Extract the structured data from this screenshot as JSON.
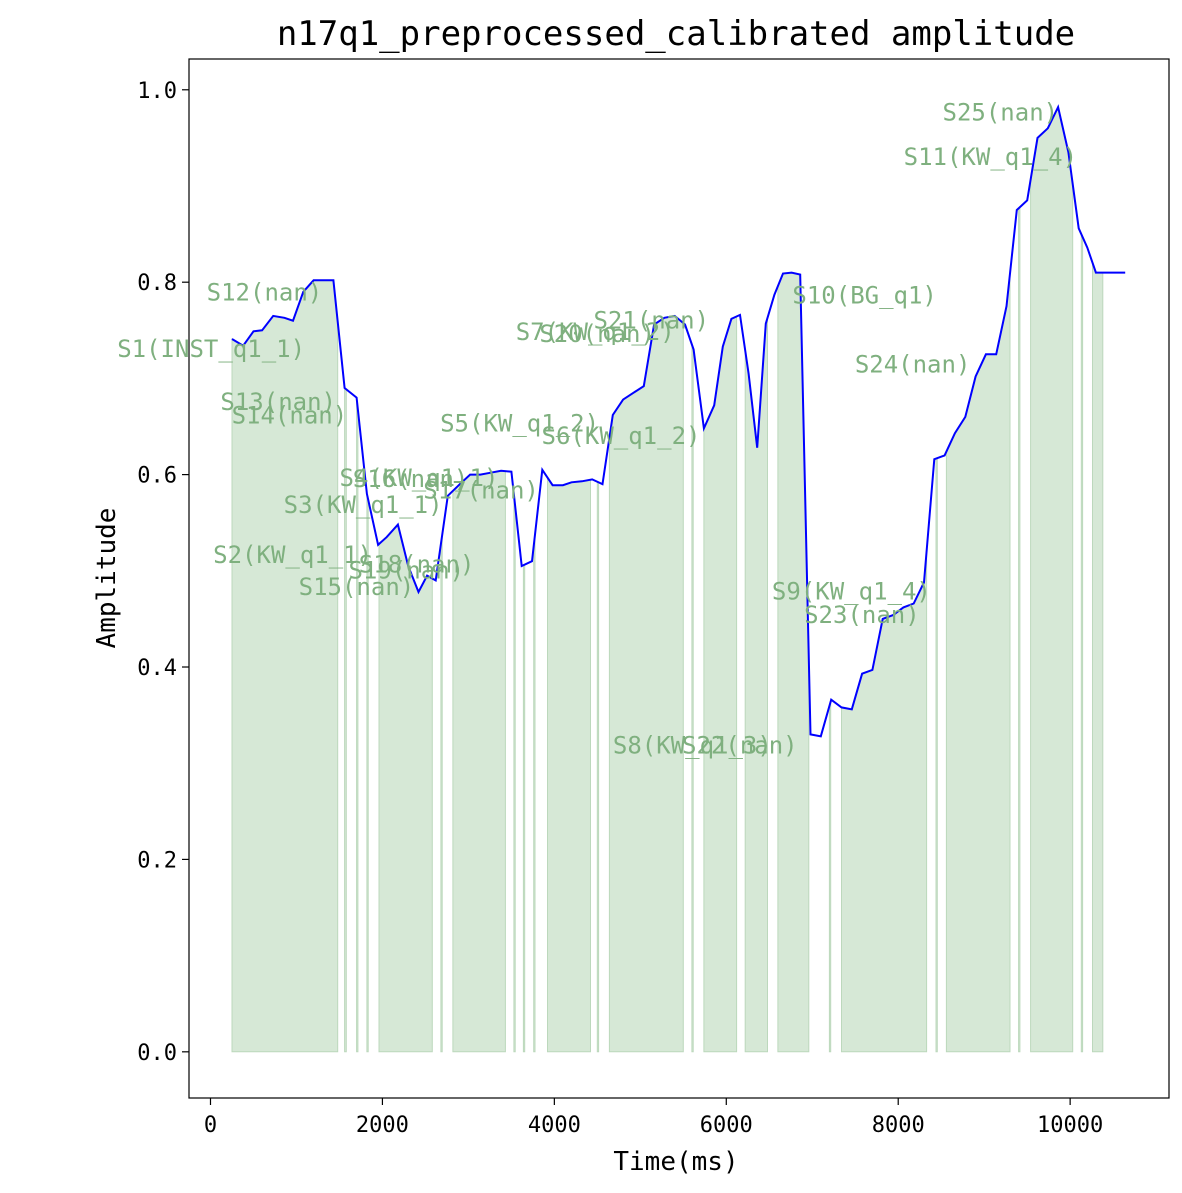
{
  "chart_data": {
    "type": "line",
    "title": "n17q1_preprocessed_calibrated amplitude",
    "xlabel": "Time(ms)",
    "ylabel": "Amplitude",
    "xlim": [
      -250,
      11150
    ],
    "ylim": [
      -0.048,
      1.032
    ],
    "x_ticks": [
      0,
      2000,
      4000,
      6000,
      8000,
      10000
    ],
    "x_tick_labels": [
      "0",
      "2000",
      "4000",
      "6000",
      "8000",
      "10000"
    ],
    "y_ticks": [
      0.0,
      0.2,
      0.4,
      0.6,
      0.8,
      1.0
    ],
    "y_tick_labels": [
      "0.0",
      "0.2",
      "0.4",
      "0.6",
      "0.8",
      "1.0"
    ],
    "grid": false,
    "series": [
      {
        "color": "#0000ff",
        "x": [
          250,
          380,
          500,
          600,
          730,
          860,
          960,
          1080,
          1200,
          1320,
          1430,
          1560,
          1700,
          1820,
          1950,
          2050,
          2180,
          2300,
          2420,
          2520,
          2620,
          2760,
          2900,
          3020,
          3140,
          3260,
          3380,
          3500,
          3620,
          3740,
          3860,
          3980,
          4100,
          4200,
          4320,
          4440,
          4560,
          4680,
          4800,
          4920,
          5040,
          5160,
          5280,
          5400,
          5520,
          5620,
          5740,
          5860,
          5960,
          6060,
          6160,
          6260,
          6360,
          6460,
          6560,
          6660,
          6760,
          6860,
          6980,
          7100,
          7220,
          7340,
          7460,
          7580,
          7700,
          7820,
          7940,
          8060,
          8180,
          8300,
          8420,
          8540,
          8660,
          8780,
          8900,
          9020,
          9140,
          9260,
          9380,
          9500,
          9620,
          9740,
          9860,
          9980,
          10100,
          10200,
          10300,
          10420,
          10540,
          10640
        ],
        "y": [
          0.741,
          0.734,
          0.749,
          0.75,
          0.765,
          0.763,
          0.76,
          0.79,
          0.802,
          0.802,
          0.802,
          0.69,
          0.68,
          0.58,
          0.527,
          0.535,
          0.548,
          0.505,
          0.478,
          0.495,
          0.49,
          0.578,
          0.59,
          0.6,
          0.6,
          0.602,
          0.604,
          0.603,
          0.505,
          0.51,
          0.605,
          0.589,
          0.589,
          0.592,
          0.593,
          0.595,
          0.59,
          0.662,
          0.678,
          0.685,
          0.692,
          0.756,
          0.763,
          0.765,
          0.756,
          0.73,
          0.648,
          0.672,
          0.733,
          0.762,
          0.766,
          0.705,
          0.628,
          0.757,
          0.787,
          0.809,
          0.81,
          0.808,
          0.33,
          0.328,
          0.366,
          0.358,
          0.356,
          0.393,
          0.397,
          0.45,
          0.454,
          0.462,
          0.466,
          0.488,
          0.616,
          0.62,
          0.643,
          0.66,
          0.702,
          0.725,
          0.725,
          0.775,
          0.875,
          0.885,
          0.95,
          0.96,
          0.982,
          0.935,
          0.856,
          0.836,
          0.81,
          0.81,
          0.81,
          0.81
        ]
      }
    ],
    "segments": [
      {
        "start": 250,
        "end": 1480
      },
      {
        "start": 1560,
        "end": 1580
      },
      {
        "start": 1700,
        "end": 1715
      },
      {
        "start": 1820,
        "end": 1835
      },
      {
        "start": 1960,
        "end": 2580
      },
      {
        "start": 2680,
        "end": 2695
      },
      {
        "start": 2820,
        "end": 3430
      },
      {
        "start": 3530,
        "end": 3545
      },
      {
        "start": 3640,
        "end": 3655
      },
      {
        "start": 3760,
        "end": 3775
      },
      {
        "start": 3920,
        "end": 4420
      },
      {
        "start": 4500,
        "end": 4515
      },
      {
        "start": 4640,
        "end": 5500
      },
      {
        "start": 5600,
        "end": 5615
      },
      {
        "start": 5740,
        "end": 6120
      },
      {
        "start": 6220,
        "end": 6480
      },
      {
        "start": 6600,
        "end": 6960
      },
      {
        "start": 7200,
        "end": 7215
      },
      {
        "start": 7340,
        "end": 8330
      },
      {
        "start": 8440,
        "end": 8455
      },
      {
        "start": 8560,
        "end": 9300
      },
      {
        "start": 9400,
        "end": 9415
      },
      {
        "start": 9540,
        "end": 10030
      },
      {
        "start": 10130,
        "end": 10145
      },
      {
        "start": 10260,
        "end": 10380
      }
    ],
    "annotations": [
      {
        "text": "S1(INST_q1_1)",
        "x": 1100,
        "y": 0.722
      },
      {
        "text": "S2(KW_q1_1)",
        "x": 1880,
        "y": 0.508
      },
      {
        "text": "S3(KW_q1_1)",
        "x": 2700,
        "y": 0.56
      },
      {
        "text": "S4(KW_q1_1)",
        "x": 3350,
        "y": 0.588
      },
      {
        "text": "S5(KW_q1_2)",
        "x": 4520,
        "y": 0.645
      },
      {
        "text": "S6(KW_q1_2)",
        "x": 5700,
        "y": 0.632
      },
      {
        "text": "S7(KW_q1_2)",
        "x": 5400,
        "y": 0.74
      },
      {
        "text": "S8(KW_q1_3)",
        "x": 6530,
        "y": 0.31
      },
      {
        "text": "S9(KW_q1_4)",
        "x": 8380,
        "y": 0.47
      },
      {
        "text": "S10(BG_q1)",
        "x": 8450,
        "y": 0.778
      },
      {
        "text": "S11(KW_q1_4)",
        "x": 10080,
        "y": 0.922
      },
      {
        "text": "S12(nan)",
        "x": 1300,
        "y": 0.781
      },
      {
        "text": "S13(nan)",
        "x": 1460,
        "y": 0.667
      },
      {
        "text": "S14(nan)",
        "x": 1590,
        "y": 0.653
      },
      {
        "text": "S15(nan)",
        "x": 2370,
        "y": 0.475
      },
      {
        "text": "S16(nan)",
        "x": 3000,
        "y": 0.587
      },
      {
        "text": "S17(nan)",
        "x": 3820,
        "y": 0.575
      },
      {
        "text": "S18(nan)",
        "x": 3070,
        "y": 0.498
      },
      {
        "text": "S19(nan)",
        "x": 2950,
        "y": 0.492
      },
      {
        "text": "S20(nan)",
        "x": 5170,
        "y": 0.738
      },
      {
        "text": "S21(nan)",
        "x": 5800,
        "y": 0.752
      },
      {
        "text": "S22(nan)",
        "x": 6830,
        "y": 0.31
      },
      {
        "text": "S23(nan)",
        "x": 8250,
        "y": 0.446
      },
      {
        "text": "S24(nan)",
        "x": 8840,
        "y": 0.706
      },
      {
        "text": "S25(nan)",
        "x": 9860,
        "y": 0.968
      }
    ],
    "colors": {
      "line": "#0000ff",
      "segment_fill": "#d6e8d6",
      "segment_edge": "#bcd8bc",
      "annotation_text": "#7fb07f",
      "axis": "#000000"
    }
  }
}
